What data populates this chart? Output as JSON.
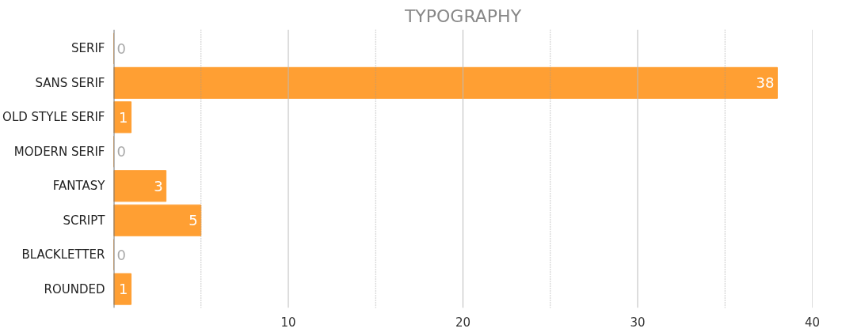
{
  "chart_data": {
    "type": "bar",
    "orientation": "horizontal",
    "title": "TYPOGRAPHY",
    "categories": [
      "SERIF",
      "SANS SERIF",
      "OLD STYLE SERIF",
      "MODERN SERIF",
      "FANTASY",
      "SCRIPT",
      "BLACKLETTER",
      "ROUNDED"
    ],
    "values": [
      0,
      38,
      1,
      0,
      3,
      5,
      0,
      1
    ],
    "color": "#ff9f33",
    "data_labels": true,
    "xlim": [
      0,
      40
    ],
    "xticks": [
      {
        "value": 5,
        "label": null
      },
      10,
      {
        "value": 15,
        "label": null
      },
      20,
      {
        "value": 25,
        "label": null
      },
      30,
      {
        "value": 35,
        "label": null
      },
      40
    ],
    "grid": "x"
  }
}
